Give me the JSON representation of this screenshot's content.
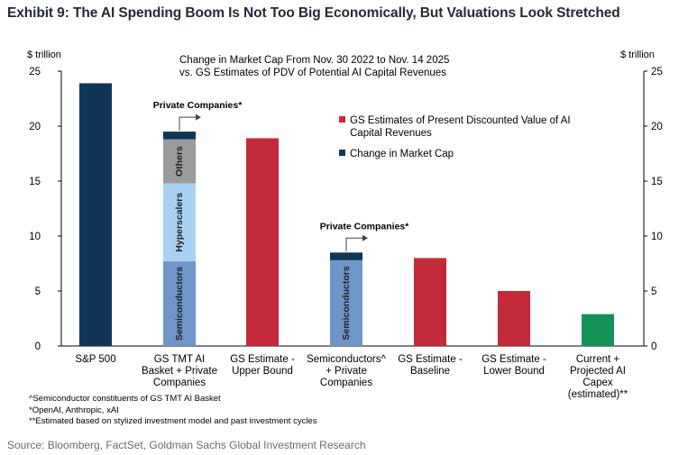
{
  "exhibit": {
    "title": "Exhibit 9: The AI Spending Boom Is Not Too Big Economically, But Valuations Look Stretched"
  },
  "chart_data": {
    "type": "bar",
    "title": "Change in Market Cap From Nov. 30 2022 to Nov. 14 2025",
    "subtitle": "vs. GS Estimates of PDV of Potential AI Capital Revenues",
    "ylabel_left": "$ trillion",
    "ylabel_right": "$ trillion",
    "ylim": [
      0,
      25
    ],
    "yticks": [
      0,
      5,
      10,
      15,
      20,
      25
    ],
    "grid": false,
    "legend_position": "top-right",
    "legend": [
      {
        "name": "GS Estimates of Present Discounted Value of AI Capital Revenues",
        "line1": "GS Estimates of Present Discounted Value of AI",
        "line2": "Capital Revenues",
        "color": "#c32b3a"
      },
      {
        "name": "Change in Market Cap",
        "line1": "Change in Market Cap",
        "line2": "",
        "color": "#0f3557"
      }
    ],
    "categories": [
      {
        "lines": [
          "S&P 500"
        ]
      },
      {
        "lines": [
          "GS TMT AI",
          "Basket + Private",
          "Companies"
        ]
      },
      {
        "lines": [
          "GS Estimate -",
          "Upper Bound"
        ]
      },
      {
        "lines": [
          "Semiconductors^",
          "+ Private",
          "Companies"
        ]
      },
      {
        "lines": [
          "GS Estimate -",
          "Baseline"
        ]
      },
      {
        "lines": [
          "GS Estimate -",
          "Lower Bound"
        ]
      },
      {
        "lines": [
          "Current +",
          "Projected AI",
          "Capex",
          "(estimated)**"
        ]
      }
    ],
    "bars": [
      {
        "category_index": 0,
        "segments": [
          {
            "label": "",
            "value": 23.9,
            "color": "#0f3557"
          }
        ]
      },
      {
        "category_index": 1,
        "segments": [
          {
            "label": "Semiconductors",
            "value": 7.7,
            "color": "#6f95c9"
          },
          {
            "label": "Hyperscalers",
            "value": 7.1,
            "color": "#a9d2f2"
          },
          {
            "label": "Others",
            "value": 4.0,
            "color": "#9b9b9b"
          },
          {
            "label": "",
            "value": 0.7,
            "color": "#0f3557"
          }
        ]
      },
      {
        "category_index": 2,
        "segments": [
          {
            "label": "",
            "value": 18.9,
            "color": "#c32b3a"
          }
        ]
      },
      {
        "category_index": 3,
        "segments": [
          {
            "label": "Semiconductors",
            "value": 7.8,
            "color": "#6f95c9"
          },
          {
            "label": "",
            "value": 0.7,
            "color": "#0f3557"
          }
        ]
      },
      {
        "category_index": 4,
        "segments": [
          {
            "label": "",
            "value": 8.0,
            "color": "#c32b3a"
          }
        ]
      },
      {
        "category_index": 5,
        "segments": [
          {
            "label": "",
            "value": 5.0,
            "color": "#c32b3a"
          }
        ]
      },
      {
        "category_index": 6,
        "segments": [
          {
            "label": "",
            "value": 2.9,
            "color": "#139356"
          }
        ]
      }
    ],
    "annotations": [
      {
        "text": "Private Companies*",
        "bar_index": 1
      },
      {
        "text": "Private Companies*",
        "bar_index": 3
      }
    ]
  },
  "footnotes": [
    "^Semiconductor constituents of GS TMT AI Basket",
    "*OpenAI, Anthropic, xAI",
    "**Estimated based on stylized investment model and past investment cycles"
  ],
  "source": "Source: Bloomberg, FactSet, Goldman Sachs Global Investment Research"
}
